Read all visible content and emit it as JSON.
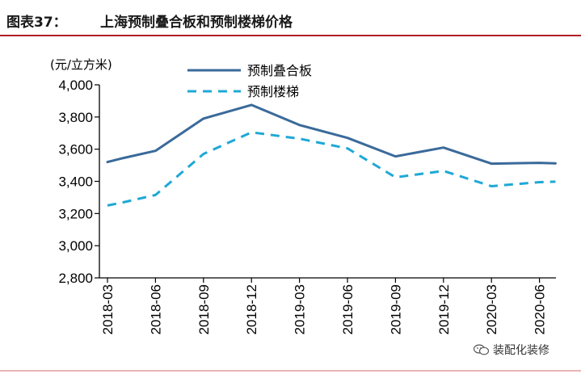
{
  "header": {
    "figure_label": "图表37：",
    "title": "上海预制叠合板和预制楼梯价格"
  },
  "colors": {
    "series_solid": "#3a6a9a",
    "series_dashed": "#1fa8d6",
    "accent_rule": "#b01f24"
  },
  "watermark": {
    "icon": "wechat-icon",
    "text": "装配化装修"
  },
  "chart_data": {
    "type": "line",
    "unit_label": "(元/立方米)",
    "categories": [
      "2018-03",
      "2018-06",
      "2018-09",
      "2018-12",
      "2019-03",
      "2019-06",
      "2019-09",
      "2019-12",
      "2020-03",
      "2020-06"
    ],
    "x": [
      "2018-03",
      "2018-04",
      "2018-06",
      "2018-09",
      "2018-12",
      "2019-03",
      "2019-06",
      "2019-09",
      "2019-12",
      "2020-03",
      "2020-06",
      "2020-07"
    ],
    "series": [
      {
        "name": "预制叠合板",
        "style": "solid",
        "values": [
          3520,
          3545,
          3590,
          3790,
          3875,
          3750,
          3670,
          3555,
          3610,
          3510,
          3515,
          3512
        ]
      },
      {
        "name": "预制楼梯",
        "style": "dashed",
        "values": [
          3250,
          3270,
          3315,
          3570,
          3705,
          3665,
          3605,
          3425,
          3465,
          3370,
          3395,
          3398
        ]
      }
    ],
    "ylim": [
      2800,
      4000
    ],
    "yticks": [
      2800,
      3000,
      3200,
      3400,
      3600,
      3800,
      4000
    ],
    "ytick_labels": [
      "2,800",
      "3,000",
      "3,200",
      "3,400",
      "3,600",
      "3,800",
      "4,000"
    ],
    "grid": false,
    "legend_position": "top"
  }
}
